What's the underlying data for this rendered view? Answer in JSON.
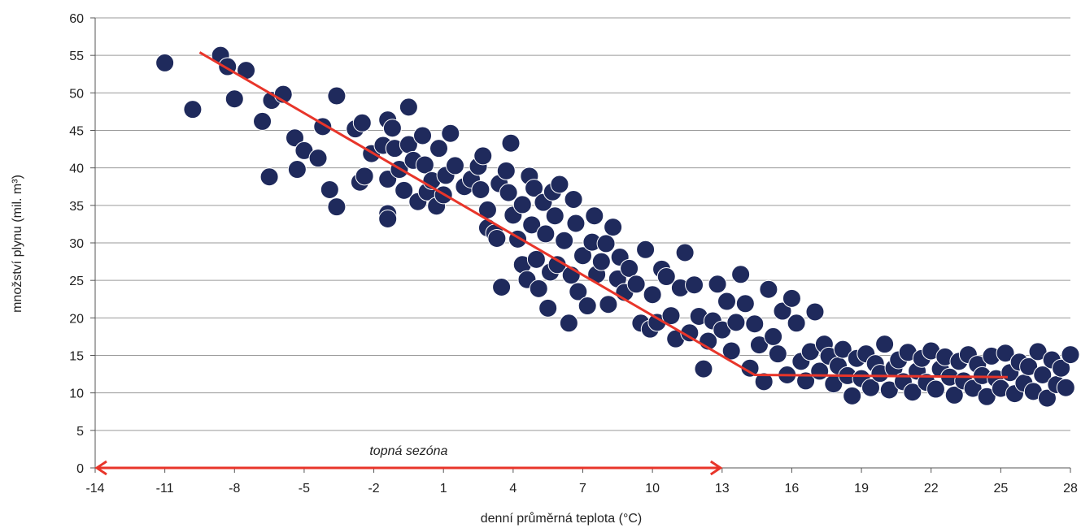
{
  "chart_data": {
    "type": "scatter",
    "title": "",
    "xlabel": "denní průměrná teplota (°C)",
    "ylabel": "množství  plynu (mil. m³)",
    "xlim": [
      -14,
      28
    ],
    "ylim": [
      0,
      60
    ],
    "xticks": [
      "-14",
      "-11",
      "-8",
      "-5",
      "-2",
      "1",
      "4",
      "7",
      "10",
      "13",
      "16",
      "19",
      "22",
      "25",
      "28"
    ],
    "yticks": [
      "0",
      "5",
      "10",
      "15",
      "20",
      "25",
      "30",
      "35",
      "40",
      "45",
      "50",
      "55",
      "60"
    ],
    "grid": "horizontal",
    "colors": {
      "points": "#1f2a5c",
      "trend": "#e8352a",
      "season_arrow": "#e8352a",
      "grid": "#9a9a9a"
    },
    "points": [
      [
        -11,
        54
      ],
      [
        -9.8,
        47.8
      ],
      [
        -8.6,
        55
      ],
      [
        -8.3,
        53.5
      ],
      [
        -8,
        49.2
      ],
      [
        -7.5,
        53
      ],
      [
        -6.8,
        46.2
      ],
      [
        -6.5,
        38.8
      ],
      [
        -6.4,
        49
      ],
      [
        -5.9,
        49.8
      ],
      [
        -5.4,
        44
      ],
      [
        -5.3,
        39.8
      ],
      [
        -5,
        42.3
      ],
      [
        -4.4,
        41.3
      ],
      [
        -4.2,
        45.5
      ],
      [
        -3.9,
        37.1
      ],
      [
        -3.6,
        34.8
      ],
      [
        -3.6,
        49.6
      ],
      [
        -2.8,
        45.2
      ],
      [
        -2.6,
        38.1
      ],
      [
        -2.5,
        46
      ],
      [
        -2.4,
        38.9
      ],
      [
        -2.1,
        41.9
      ],
      [
        -1.6,
        43
      ],
      [
        -1.4,
        46.4
      ],
      [
        -1.4,
        38.5
      ],
      [
        -1.4,
        33.9
      ],
      [
        -1.4,
        33.2
      ],
      [
        -1.2,
        45.3
      ],
      [
        -1.1,
        42.6
      ],
      [
        -0.9,
        39.8
      ],
      [
        -0.7,
        37
      ],
      [
        -0.5,
        48.1
      ],
      [
        -0.5,
        43.1
      ],
      [
        -0.3,
        41
      ],
      [
        -0.1,
        35.5
      ],
      [
        0.1,
        44.3
      ],
      [
        0.2,
        40.4
      ],
      [
        0.3,
        36.8
      ],
      [
        0.5,
        38.3
      ],
      [
        0.7,
        34.9
      ],
      [
        0.8,
        42.6
      ],
      [
        1,
        36.4
      ],
      [
        1.1,
        39
      ],
      [
        1.3,
        44.6
      ],
      [
        1.5,
        40.3
      ],
      [
        1.9,
        37.5
      ],
      [
        2.2,
        38.5
      ],
      [
        2.5,
        40.2
      ],
      [
        2.6,
        37.1
      ],
      [
        2.7,
        41.6
      ],
      [
        2.9,
        34.4
      ],
      [
        2.9,
        32
      ],
      [
        3.2,
        31.3
      ],
      [
        3.3,
        30.6
      ],
      [
        3.4,
        37.9
      ],
      [
        3.5,
        24.1
      ],
      [
        3.7,
        39.6
      ],
      [
        3.8,
        36.7
      ],
      [
        3.9,
        43.3
      ],
      [
        4,
        33.7
      ],
      [
        4.2,
        30.5
      ],
      [
        4.4,
        35.1
      ],
      [
        4.4,
        27.1
      ],
      [
        4.6,
        25.1
      ],
      [
        4.7,
        38.9
      ],
      [
        4.8,
        32.4
      ],
      [
        4.9,
        37.3
      ],
      [
        5,
        27.8
      ],
      [
        5.1,
        23.9
      ],
      [
        5.3,
        35.4
      ],
      [
        5.4,
        31.2
      ],
      [
        5.5,
        21.3
      ],
      [
        5.6,
        26.1
      ],
      [
        5.7,
        36.8
      ],
      [
        5.8,
        33.6
      ],
      [
        5.9,
        27.1
      ],
      [
        6,
        37.8
      ],
      [
        6.2,
        30.3
      ],
      [
        6.4,
        19.3
      ],
      [
        6.5,
        25.7
      ],
      [
        6.6,
        35.8
      ],
      [
        6.7,
        32.6
      ],
      [
        6.8,
        23.5
      ],
      [
        7,
        28.3
      ],
      [
        7.2,
        21.6
      ],
      [
        7.4,
        30.1
      ],
      [
        7.5,
        33.6
      ],
      [
        7.6,
        25.8
      ],
      [
        7.8,
        27.5
      ],
      [
        8,
        29.9
      ],
      [
        8.1,
        21.8
      ],
      [
        8.3,
        32.1
      ],
      [
        8.5,
        25.2
      ],
      [
        8.6,
        28.1
      ],
      [
        8.8,
        23.4
      ],
      [
        9,
        26.6
      ],
      [
        9.3,
        24.5
      ],
      [
        9.5,
        19.3
      ],
      [
        9.7,
        29.1
      ],
      [
        9.9,
        18.5
      ],
      [
        10,
        23.1
      ],
      [
        10.2,
        19.4
      ],
      [
        10.4,
        26.5
      ],
      [
        10.6,
        25.5
      ],
      [
        10.8,
        20.3
      ],
      [
        11,
        17.2
      ],
      [
        11.2,
        24
      ],
      [
        11.4,
        28.7
      ],
      [
        11.6,
        18
      ],
      [
        11.8,
        24.4
      ],
      [
        12,
        20.2
      ],
      [
        12.2,
        13.2
      ],
      [
        12.4,
        16.9
      ],
      [
        12.6,
        19.6
      ],
      [
        12.8,
        24.5
      ],
      [
        13,
        18.4
      ],
      [
        13.2,
        22.2
      ],
      [
        13.4,
        15.6
      ],
      [
        13.6,
        19.4
      ],
      [
        13.8,
        25.8
      ],
      [
        14,
        21.9
      ],
      [
        14.2,
        13.3
      ],
      [
        14.4,
        19.2
      ],
      [
        14.6,
        16.4
      ],
      [
        14.8,
        11.5
      ],
      [
        15,
        23.8
      ],
      [
        15.2,
        17.5
      ],
      [
        15.4,
        15.2
      ],
      [
        15.6,
        20.9
      ],
      [
        15.8,
        12.4
      ],
      [
        16,
        22.6
      ],
      [
        16.2,
        19.3
      ],
      [
        16.4,
        14.2
      ],
      [
        16.6,
        11.6
      ],
      [
        16.8,
        15.5
      ],
      [
        17,
        20.8
      ],
      [
        17.2,
        12.9
      ],
      [
        17.4,
        16.5
      ],
      [
        17.6,
        14.9
      ],
      [
        17.8,
        11.2
      ],
      [
        18,
        13.6
      ],
      [
        18.2,
        15.8
      ],
      [
        18.4,
        12.3
      ],
      [
        18.6,
        9.6
      ],
      [
        18.8,
        14.6
      ],
      [
        19,
        11.9
      ],
      [
        19.2,
        15.2
      ],
      [
        19.4,
        10.7
      ],
      [
        19.6,
        13.9
      ],
      [
        19.8,
        12.6
      ],
      [
        20,
        16.5
      ],
      [
        20.2,
        10.4
      ],
      [
        20.4,
        13.3
      ],
      [
        20.6,
        14.4
      ],
      [
        20.8,
        11.5
      ],
      [
        21,
        15.4
      ],
      [
        21.2,
        10.1
      ],
      [
        21.4,
        12.9
      ],
      [
        21.6,
        14.6
      ],
      [
        21.8,
        11.4
      ],
      [
        22,
        15.6
      ],
      [
        22.2,
        10.5
      ],
      [
        22.4,
        13.2
      ],
      [
        22.6,
        14.8
      ],
      [
        22.8,
        12.1
      ],
      [
        23,
        9.7
      ],
      [
        23.2,
        14.2
      ],
      [
        23.4,
        11.6
      ],
      [
        23.6,
        15.1
      ],
      [
        23.8,
        10.6
      ],
      [
        24,
        13.8
      ],
      [
        24.2,
        12.3
      ],
      [
        24.4,
        9.5
      ],
      [
        24.6,
        14.9
      ],
      [
        24.8,
        11.9
      ],
      [
        25,
        10.6
      ],
      [
        25.2,
        15.3
      ],
      [
        25.4,
        12.7
      ],
      [
        25.6,
        9.9
      ],
      [
        25.8,
        14.1
      ],
      [
        26,
        11.3
      ],
      [
        26.2,
        13.5
      ],
      [
        26.4,
        10.2
      ],
      [
        26.6,
        15.5
      ],
      [
        26.8,
        12.4
      ],
      [
        27,
        9.3
      ],
      [
        27.2,
        14.4
      ],
      [
        27.4,
        11.1
      ],
      [
        27.6,
        13.3
      ],
      [
        27.8,
        10.7
      ],
      [
        28,
        15.1
      ]
    ],
    "trend_line": [
      [
        -9.5,
        55.4
      ],
      [
        14.4,
        12.4
      ],
      [
        25.3,
        12.1
      ]
    ],
    "annotations": [
      {
        "text": "topná sezóna",
        "x_from": -14,
        "x_to": 13,
        "y": 0
      }
    ]
  }
}
